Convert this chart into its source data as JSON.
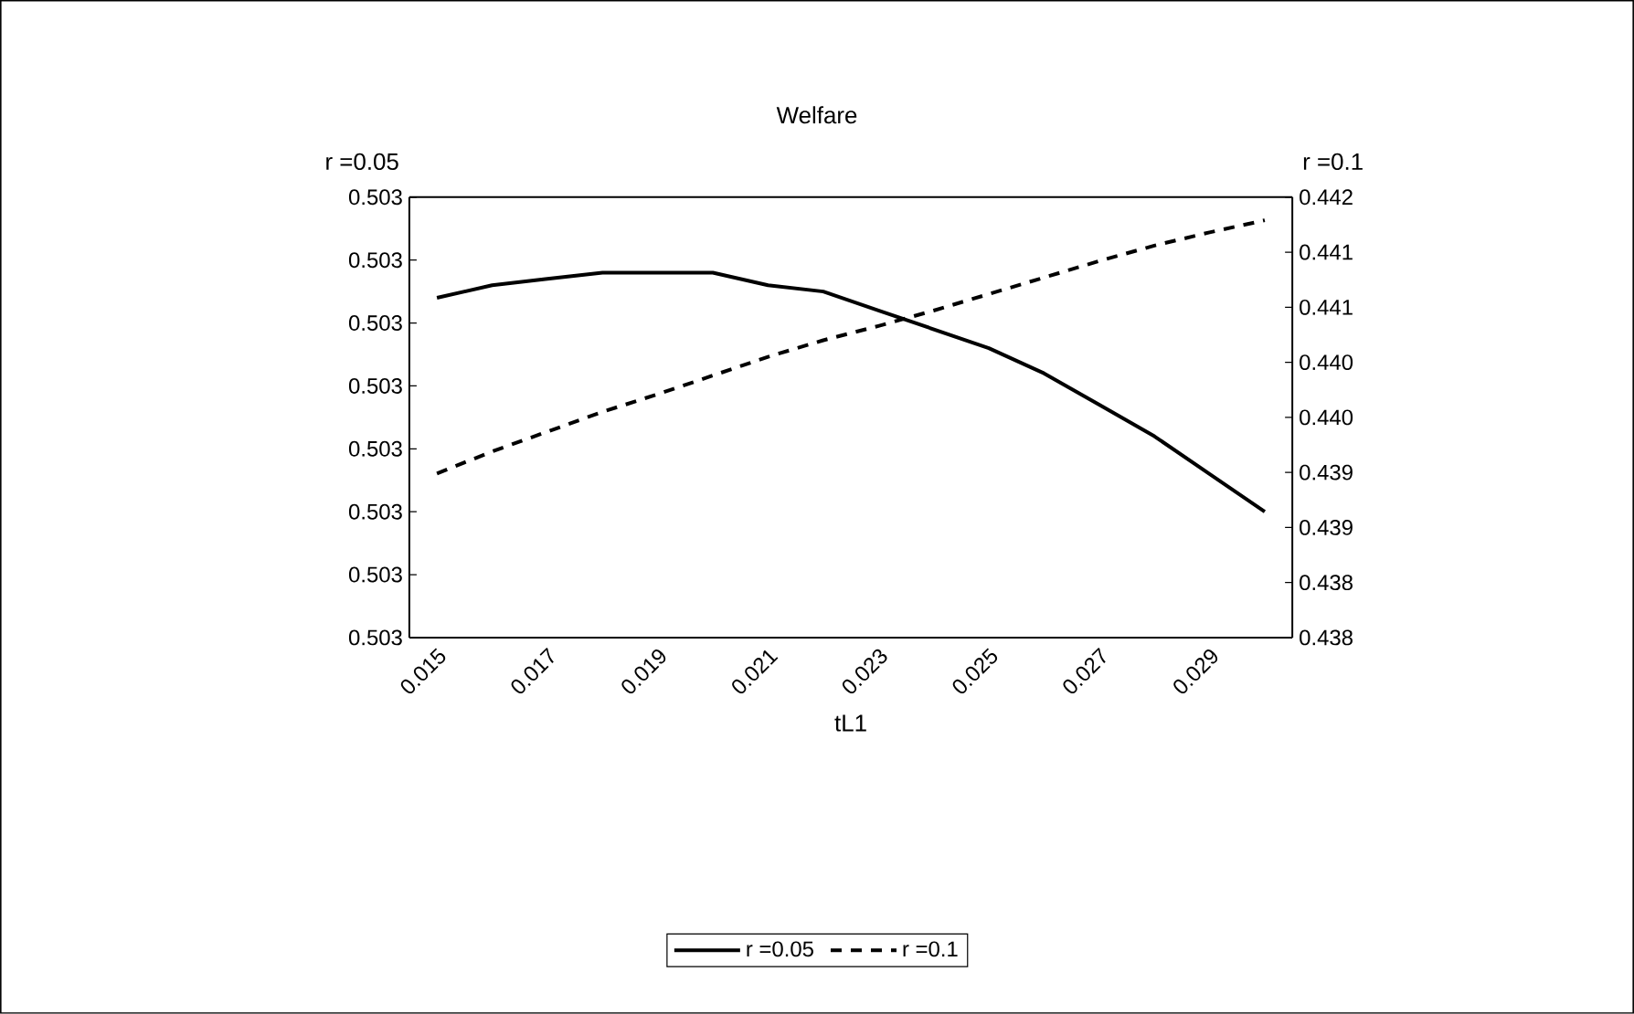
{
  "chart_data": {
    "type": "line",
    "title": "Welfare",
    "xlabel": "tL1",
    "ylabel": "r =0.05",
    "y2label": "r =0.1",
    "legend": "bottom",
    "categories": [
      "0.015",
      null,
      "0.017",
      null,
      "0.019",
      null,
      "0.021",
      null,
      "0.023",
      null,
      "0.025",
      null,
      "0.027",
      null,
      "0.029",
      null
    ],
    "series": [
      {
        "name": "r =0.05",
        "color": "#000000",
        "line_style": "solid",
        "values": [
          0.503054,
          0.503056,
          0.503057,
          0.503058,
          0.503058,
          0.503058,
          0.503056,
          0.503055,
          0.503052,
          0.503049,
          0.503046,
          0.503042,
          0.503037,
          0.503032,
          0.503026,
          0.50302
        ]
      },
      {
        "name": "r =0.1",
        "color": "#000000",
        "line_style": "dashed",
        "axis": "y2",
        "values": [
          0.43949,
          0.43969,
          0.43987,
          0.44005,
          0.44021,
          0.44038,
          0.44055,
          0.4407,
          0.44083,
          0.44097,
          0.44112,
          0.44127,
          0.44142,
          0.44156,
          0.44168,
          0.44179
        ]
      }
    ],
    "ylim": [
      0.503,
      0.50307
    ],
    "yticks": [
      {
        "value": 0.503,
        "label": "0.503"
      },
      {
        "value": 0.50301,
        "label": "0.503"
      },
      {
        "value": 0.50302,
        "label": "0.503"
      },
      {
        "value": 0.50303,
        "label": "0.503"
      },
      {
        "value": 0.50304,
        "label": "0.503"
      },
      {
        "value": 0.50305,
        "label": "0.503"
      },
      {
        "value": 0.50306,
        "label": "0.503"
      },
      {
        "value": 0.50307,
        "label": "0.503"
      }
    ],
    "y2lim": [
      0.438,
      0.442
    ],
    "y2ticks": [
      {
        "value": 0.438,
        "label": "0.438"
      },
      {
        "value": 0.4385,
        "label": "0.438"
      },
      {
        "value": 0.439,
        "label": "0.439"
      },
      {
        "value": 0.4395,
        "label": "0.439"
      },
      {
        "value": 0.44,
        "label": "0.440"
      },
      {
        "value": 0.4405,
        "label": "0.440"
      },
      {
        "value": 0.441,
        "label": "0.441"
      },
      {
        "value": 0.4415,
        "label": "0.441"
      },
      {
        "value": 0.442,
        "label": "0.442"
      }
    ]
  }
}
